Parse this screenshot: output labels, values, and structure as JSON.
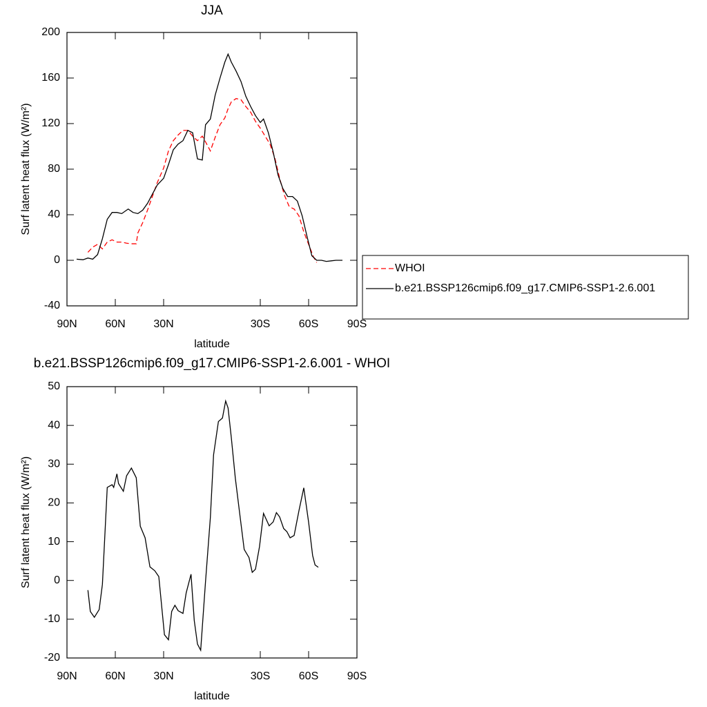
{
  "chart_data": [
    {
      "type": "line",
      "title": "JJA",
      "xlabel": "latitude",
      "ylabel": "Surf latent heat flux (W/m²)",
      "xlim": [
        90,
        -90
      ],
      "xticks": [
        {
          "value": 90,
          "label": "90N"
        },
        {
          "value": 60,
          "label": "60N"
        },
        {
          "value": 30,
          "label": "30N"
        },
        {
          "value": -30,
          "label": "30S"
        },
        {
          "value": -60,
          "label": "60S"
        },
        {
          "value": -90,
          "label": "90S"
        }
      ],
      "ylim": [
        -40,
        200
      ],
      "yticks": [
        -40,
        0,
        40,
        80,
        120,
        160,
        200
      ],
      "legend": "right",
      "series": [
        {
          "name": "WHOI",
          "color": "#ff0000",
          "style": "dashed",
          "x": [
            77,
            74,
            71,
            68,
            65,
            62,
            59,
            56,
            53,
            50,
            47,
            46,
            43,
            40,
            37,
            34,
            30,
            27,
            24,
            21,
            18,
            15,
            12,
            9,
            6,
            4,
            1,
            -2,
            -5,
            -8,
            -10,
            -12,
            -15,
            -18,
            -21,
            -24,
            -27,
            -30,
            -33,
            -36,
            -39,
            -42,
            -45,
            -48,
            -51,
            -54,
            -57,
            -60,
            -63,
            -65
          ],
          "values": [
            7,
            11.5,
            14,
            10,
            16,
            18,
            16,
            16,
            15,
            14.5,
            14.5,
            24,
            33,
            44,
            56,
            68,
            81,
            96,
            105,
            110,
            114,
            114,
            109,
            105,
            109,
            104,
            96,
            108,
            119,
            125,
            133,
            139,
            142,
            141,
            135,
            130,
            122,
            116,
            109,
            102,
            90,
            72,
            57,
            47,
            45,
            39,
            25,
            14,
            3,
            -2
          ]
        },
        {
          "name": "b.e21.BSSP126cmip6.f09_g17.CMIP6-SSP1-2.6.001",
          "color": "#000000",
          "style": "solid",
          "x": [
            84,
            80,
            77,
            74,
            71,
            68,
            65,
            62,
            59,
            56,
            52,
            49,
            46,
            43,
            40,
            37,
            34,
            30,
            27,
            24,
            21,
            18,
            15,
            12,
            9,
            6,
            4,
            1,
            -2,
            -5,
            -8,
            -10,
            -12,
            -15,
            -18,
            -21,
            -24,
            -27,
            -30,
            -32,
            -35,
            -38,
            -41,
            -44,
            -47,
            -50,
            -53,
            -56,
            -59,
            -62,
            -65,
            -68,
            -71,
            -74,
            -77,
            -81
          ],
          "values": [
            1,
            0.5,
            2,
            1,
            5,
            19,
            36,
            42,
            42,
            41,
            45,
            42,
            41,
            44,
            50,
            58,
            66,
            72,
            84,
            97,
            102,
            105,
            114,
            112,
            89,
            88,
            119,
            124,
            145,
            160,
            174,
            181,
            174,
            166,
            157,
            144,
            135,
            127,
            121,
            124,
            112,
            95,
            75,
            63,
            56,
            56,
            52,
            39,
            21,
            4,
            0,
            0,
            -1,
            -0.5,
            0,
            0
          ]
        }
      ]
    },
    {
      "type": "line",
      "title": "b.e21.BSSP126cmip6.f09_g17.CMIP6-SSP1-2.6.001 - WHOI",
      "xlabel": "latitude",
      "ylabel": "Surf latent heat flux (W/m²)",
      "xlim": [
        90,
        -90
      ],
      "xticks": [
        {
          "value": 90,
          "label": "90N"
        },
        {
          "value": 60,
          "label": "60N"
        },
        {
          "value": 30,
          "label": "30N"
        },
        {
          "value": -30,
          "label": "30S"
        },
        {
          "value": -60,
          "label": "60S"
        },
        {
          "value": -90,
          "label": "90S"
        }
      ],
      "ylim": [
        -20,
        50
      ],
      "yticks": [
        -20,
        -10,
        0,
        10,
        20,
        30,
        40,
        50
      ],
      "color": "#000000",
      "x": [
        77,
        75.5,
        73,
        70,
        68,
        65,
        62,
        61,
        59,
        58,
        55,
        53,
        50,
        47,
        44.5,
        41.5,
        38.5,
        35.5,
        33,
        29.5,
        27,
        25,
        23,
        21,
        18,
        16,
        13,
        11,
        9,
        7,
        4,
        1,
        -1,
        -4,
        -6.5,
        -8.5,
        -10,
        -12,
        -14.5,
        -17,
        -20,
        -23,
        -25,
        -27,
        -29.5,
        -32,
        -35.5,
        -38,
        -40,
        -42,
        -44.5,
        -46.5,
        -48.5,
        -51,
        -54,
        -57,
        -60,
        -62.5,
        -64,
        -66
      ],
      "values": [
        -2.5,
        -8,
        -9.5,
        -7.5,
        -1,
        24,
        24.7,
        24,
        27.5,
        25,
        23,
        27,
        29,
        26.5,
        14,
        11,
        3.5,
        2.5,
        1,
        -14,
        -15.3,
        -8,
        -6.4,
        -7.8,
        -8.5,
        -3.2,
        1.6,
        -10.3,
        -16.4,
        -18,
        -0.3,
        16.2,
        32.4,
        41,
        41.9,
        46.3,
        44.5,
        36.9,
        26.4,
        18,
        8,
        5.9,
        2.1,
        2.9,
        8.7,
        17.3,
        14.1,
        15.1,
        17.5,
        16.4,
        13.4,
        12.6,
        11,
        11.6,
        18,
        23.9,
        15,
        6.4,
        4,
        3.4
      ]
    }
  ]
}
